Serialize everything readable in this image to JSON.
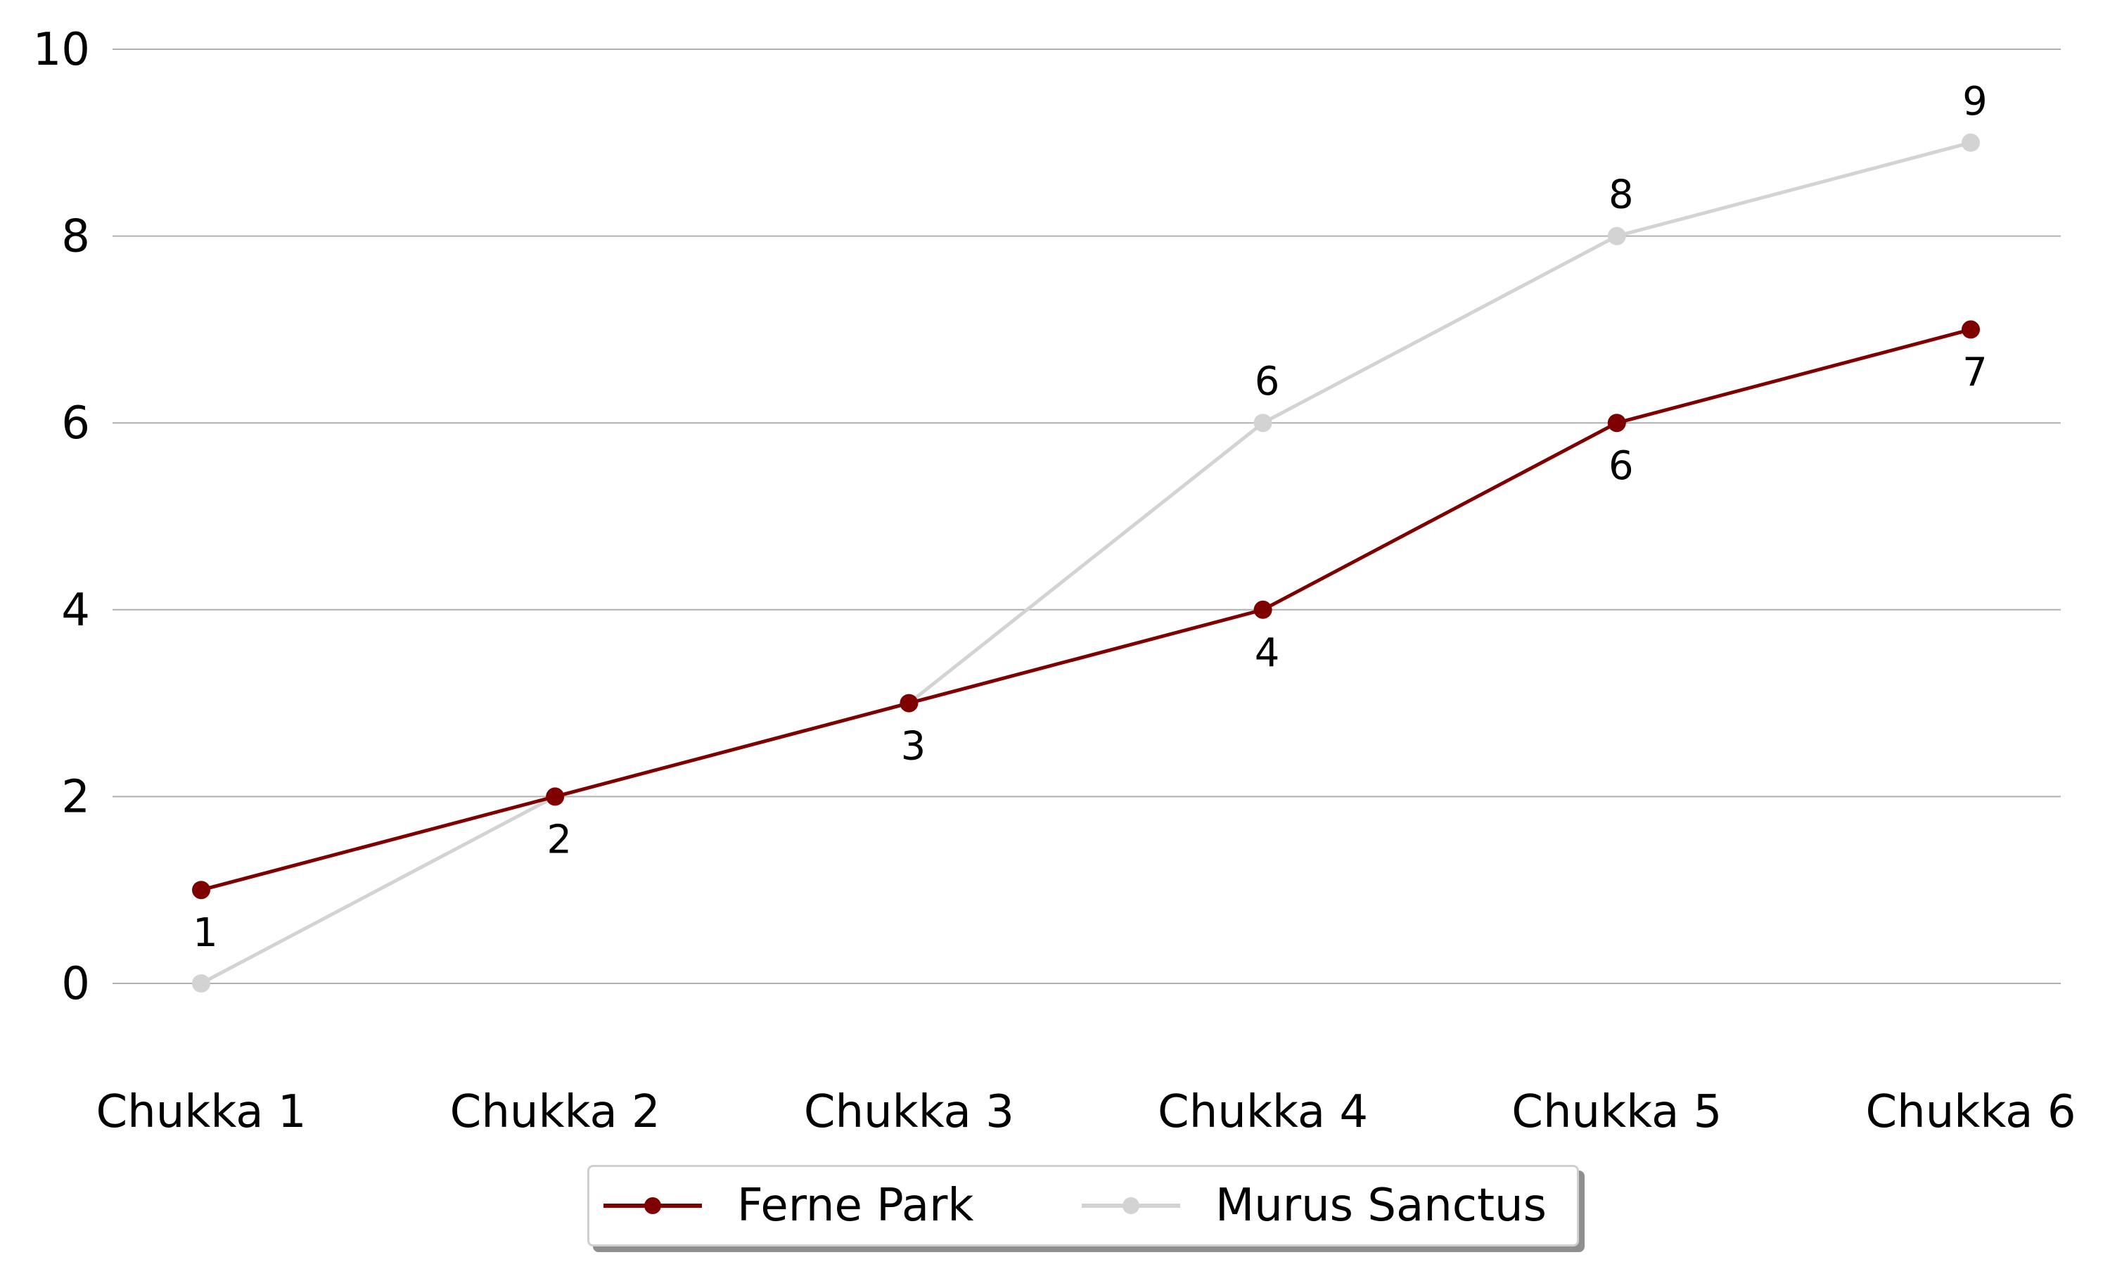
{
  "chart_data": {
    "type": "line",
    "title": "",
    "xlabel": "",
    "ylabel": "",
    "categories": [
      "Chukka 1",
      "Chukka 2",
      "Chukka 3",
      "Chukka 4",
      "Chukka 5",
      "Chukka 6"
    ],
    "ylim": [
      -1,
      10
    ],
    "yticks": [
      "0",
      "2",
      "4",
      "6",
      "8",
      "10"
    ],
    "grid": "horizontal",
    "legend_position": "bottom-center",
    "series": [
      {
        "name": "Ferne Park",
        "color": "#7f0000",
        "values": [
          1,
          2,
          3,
          4,
          6,
          7
        ],
        "label_position": "below",
        "labels": [
          "1",
          "2",
          "3",
          "4",
          "6",
          "7"
        ]
      },
      {
        "name": "Murus Sanctus",
        "color": "#d3d3d3",
        "values": [
          0,
          2,
          3,
          6,
          8,
          9
        ],
        "label_position": "above",
        "labels": [
          "",
          "",
          "",
          "6",
          "8",
          "9"
        ]
      }
    ]
  }
}
